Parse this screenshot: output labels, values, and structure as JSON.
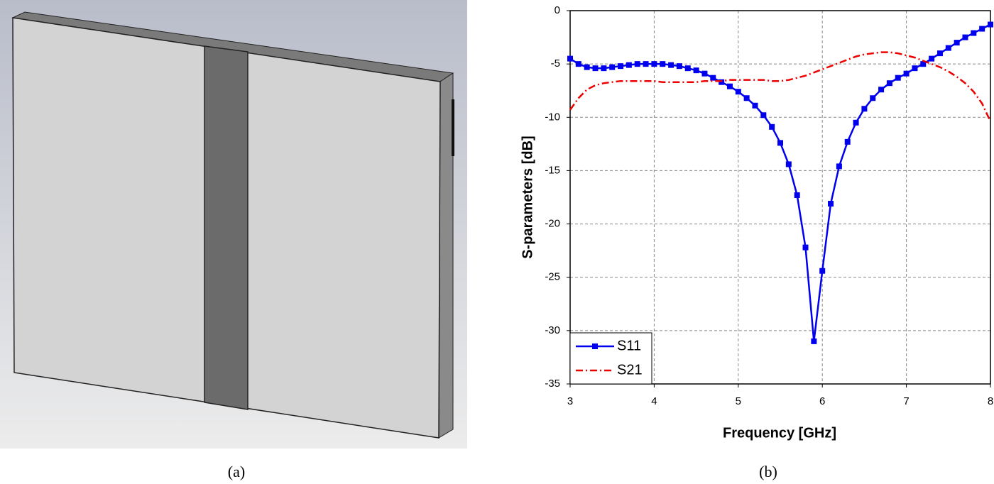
{
  "captions": {
    "left": "(a)",
    "right": "(b)"
  },
  "chart_data": {
    "type": "line",
    "x_label": "Frequency [GHz]",
    "y_label": "S-parameters [dB]",
    "x": [
      3.0,
      3.1,
      3.2,
      3.3,
      3.4,
      3.5,
      3.6,
      3.7,
      3.8,
      3.9,
      4.0,
      4.1,
      4.2,
      4.3,
      4.4,
      4.5,
      4.6,
      4.7,
      4.8,
      4.9,
      5.0,
      5.1,
      5.2,
      5.3,
      5.4,
      5.5,
      5.6,
      5.7,
      5.8,
      5.9,
      6.0,
      6.1,
      6.2,
      6.3,
      6.4,
      6.5,
      6.6,
      6.7,
      6.8,
      6.9,
      7.0,
      7.1,
      7.2,
      7.3,
      7.4,
      7.5,
      7.6,
      7.7,
      7.8,
      7.9,
      8.0
    ],
    "series": [
      {
        "name": "S11",
        "color": "#0000ee",
        "marker": "square",
        "dash": "solid",
        "values": [
          -4.5,
          -5.0,
          -5.3,
          -5.4,
          -5.4,
          -5.3,
          -5.2,
          -5.1,
          -5.0,
          -5.0,
          -5.0,
          -5.0,
          -5.1,
          -5.2,
          -5.4,
          -5.6,
          -5.9,
          -6.3,
          -6.7,
          -7.1,
          -7.6,
          -8.2,
          -8.9,
          -9.8,
          -10.9,
          -12.4,
          -14.4,
          -17.3,
          -22.2,
          -31.0,
          -24.4,
          -18.1,
          -14.6,
          -12.3,
          -10.5,
          -9.2,
          -8.2,
          -7.4,
          -6.8,
          -6.3,
          -5.9,
          -5.4,
          -5.0,
          -4.5,
          -4.0,
          -3.5,
          -3.0,
          -2.5,
          -2.1,
          -1.7,
          -1.3
        ]
      },
      {
        "name": "S21",
        "color": "#ee0000",
        "marker": "none",
        "dash": "dash-dot",
        "values": [
          -9.3,
          -8.2,
          -7.4,
          -7.0,
          -6.8,
          -6.7,
          -6.6,
          -6.6,
          -6.6,
          -6.6,
          -6.6,
          -6.7,
          -6.7,
          -6.7,
          -6.7,
          -6.7,
          -6.6,
          -6.6,
          -6.6,
          -6.5,
          -6.5,
          -6.5,
          -6.5,
          -6.5,
          -6.6,
          -6.6,
          -6.5,
          -6.3,
          -6.1,
          -5.8,
          -5.5,
          -5.2,
          -4.9,
          -4.6,
          -4.3,
          -4.1,
          -4.0,
          -3.9,
          -3.9,
          -4.0,
          -4.2,
          -4.4,
          -4.7,
          -5.0,
          -5.3,
          -5.7,
          -6.2,
          -6.8,
          -7.6,
          -8.7,
          -10.4
        ]
      }
    ],
    "xlim": [
      3,
      8
    ],
    "xticks": [
      3,
      4,
      5,
      6,
      7,
      8
    ],
    "ylim": [
      -35,
      0
    ],
    "yticks": [
      0,
      -5,
      -10,
      -15,
      -20,
      -25,
      -30,
      -35
    ],
    "grid": true,
    "legend": "lower left"
  }
}
